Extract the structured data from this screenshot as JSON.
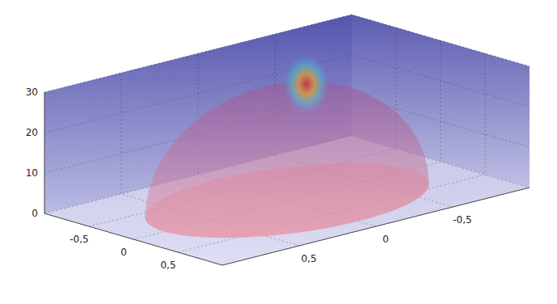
{
  "chart_data": {
    "type": "volume3d",
    "xlim": [
      -1,
      1
    ],
    "ylim": [
      -1,
      1
    ],
    "zlim": [
      0,
      30
    ],
    "xticks": [
      {
        "value": -0.5,
        "label": "-0,5"
      },
      0,
      {
        "value": 0.5,
        "label": "0,5"
      }
    ],
    "yticks": [
      {
        "value": -0.5,
        "label": "-0,5"
      },
      0,
      {
        "value": 0.5,
        "label": "0,5"
      }
    ],
    "zticks": [
      0,
      10,
      20,
      30
    ],
    "grid": true,
    "color": "#2b2b9a",
    "dome": {
      "radius": 0.8,
      "height": 28,
      "color": "#e8808f"
    },
    "hotspot": {
      "x": -0.3,
      "y": -0.3,
      "z": 24,
      "radius": 0.25
    }
  }
}
